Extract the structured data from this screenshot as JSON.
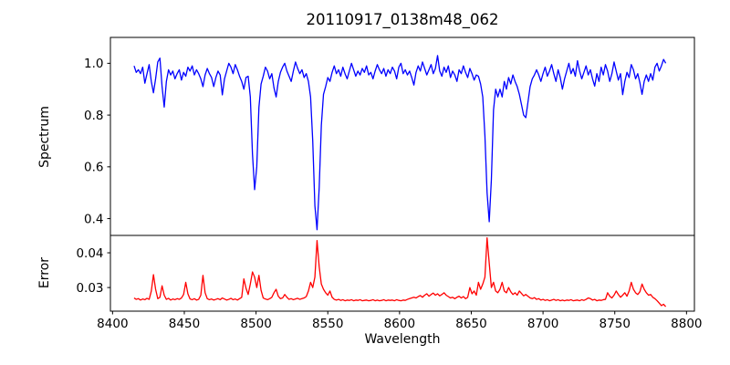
{
  "figure": {
    "background": "#ffffff",
    "frame_color": "#000000"
  },
  "chart_data": [
    {
      "type": "line",
      "panel": "spectrum",
      "title": "20110917_0138m48_062",
      "ylabel": "Spectrum",
      "line_color": "#0000ff",
      "x_start": 8415,
      "x_step": 1.5,
      "xlim": [
        8398.5,
        8805.5
      ],
      "ylim": [
        0.335,
        1.1
      ],
      "yticks": [
        0.4,
        0.6,
        0.8,
        1.0
      ],
      "ytick_labels": [
        "0.4",
        "0.6",
        "0.8",
        "1.0"
      ],
      "absorption_lines_wavelengths": [
        8498,
        8542,
        8662,
        8688
      ],
      "values": [
        0.99,
        0.965,
        0.975,
        0.96,
        0.985,
        0.923,
        0.96,
        0.995,
        0.93,
        0.886,
        0.94,
        1.005,
        1.02,
        0.91,
        0.831,
        0.93,
        0.975,
        0.955,
        0.97,
        0.94,
        0.96,
        0.975,
        0.935,
        0.965,
        0.95,
        0.985,
        0.97,
        0.99,
        0.955,
        0.975,
        0.96,
        0.94,
        0.91,
        0.955,
        0.98,
        0.96,
        0.945,
        0.91,
        0.945,
        0.97,
        0.955,
        0.878,
        0.94,
        0.97,
        1.0,
        0.985,
        0.96,
        0.995,
        0.975,
        0.95,
        0.93,
        0.9,
        0.945,
        0.95,
        0.87,
        0.65,
        0.512,
        0.6,
        0.83,
        0.92,
        0.95,
        0.985,
        0.97,
        0.94,
        0.96,
        0.905,
        0.87,
        0.93,
        0.965,
        0.985,
        1.0,
        0.97,
        0.95,
        0.93,
        0.97,
        1.005,
        0.98,
        0.96,
        0.975,
        0.945,
        0.96,
        0.93,
        0.87,
        0.7,
        0.45,
        0.357,
        0.52,
        0.76,
        0.88,
        0.91,
        0.945,
        0.93,
        0.965,
        0.99,
        0.96,
        0.975,
        0.95,
        0.985,
        0.96,
        0.94,
        0.97,
        1.0,
        0.975,
        0.95,
        0.97,
        0.955,
        0.98,
        0.965,
        0.99,
        0.955,
        0.965,
        0.94,
        0.97,
        0.995,
        0.975,
        0.96,
        0.98,
        0.95,
        0.975,
        0.96,
        0.985,
        0.97,
        0.94,
        0.985,
        1.0,
        0.96,
        0.975,
        0.955,
        0.97,
        0.945,
        0.916,
        0.965,
        0.99,
        0.97,
        1.005,
        0.98,
        0.955,
        0.975,
        0.995,
        0.96,
        0.98,
        1.03,
        0.97,
        0.95,
        0.985,
        0.965,
        0.99,
        0.945,
        0.97,
        0.955,
        0.93,
        0.975,
        0.96,
        0.99,
        0.965,
        0.945,
        0.98,
        0.96,
        0.935,
        0.955,
        0.95,
        0.92,
        0.87,
        0.72,
        0.5,
        0.388,
        0.55,
        0.82,
        0.9,
        0.87,
        0.9,
        0.87,
        0.93,
        0.9,
        0.945,
        0.92,
        0.955,
        0.93,
        0.91,
        0.88,
        0.84,
        0.8,
        0.79,
        0.85,
        0.91,
        0.94,
        0.955,
        0.975,
        0.955,
        0.93,
        0.96,
        0.985,
        0.95,
        0.97,
        0.995,
        0.96,
        0.93,
        0.975,
        0.945,
        0.9,
        0.94,
        0.97,
        1.0,
        0.96,
        0.98,
        0.95,
        1.01,
        0.97,
        0.94,
        0.965,
        0.99,
        0.955,
        0.975,
        0.94,
        0.912,
        0.96,
        0.93,
        0.985,
        0.955,
        0.995,
        0.97,
        0.93,
        0.96,
        1.005,
        0.97,
        0.935,
        0.96,
        0.879,
        0.93,
        0.965,
        0.945,
        0.995,
        0.975,
        0.94,
        0.96,
        0.925,
        0.88,
        0.93,
        0.955,
        0.93,
        0.96,
        0.935,
        0.985,
        1.0,
        0.97,
        0.99,
        1.015,
        1.0
      ]
    },
    {
      "type": "line",
      "panel": "error",
      "ylabel": "Error",
      "xlabel": "Wavelength",
      "line_color": "#ff0000",
      "x_start": 8415,
      "x_step": 1.5,
      "xlim": [
        8398.5,
        8805.5
      ],
      "ylim": [
        0.0232,
        0.045
      ],
      "yticks": [
        0.03,
        0.04
      ],
      "ytick_labels": [
        "0.03",
        "0.04"
      ],
      "xticks": [
        8400,
        8450,
        8500,
        8550,
        8600,
        8650,
        8700,
        8750,
        8800
      ],
      "xtick_labels": [
        "8400",
        "8450",
        "8500",
        "8550",
        "8600",
        "8650",
        "8700",
        "8750",
        "8800"
      ],
      "values": [
        0.027,
        0.0266,
        0.0268,
        0.0264,
        0.0267,
        0.0265,
        0.0269,
        0.0266,
        0.029,
        0.0337,
        0.0295,
        0.0268,
        0.0272,
        0.0305,
        0.0278,
        0.0266,
        0.0269,
        0.0264,
        0.0267,
        0.0265,
        0.0268,
        0.0266,
        0.027,
        0.028,
        0.0315,
        0.0282,
        0.0267,
        0.0265,
        0.0268,
        0.0264,
        0.0266,
        0.0278,
        0.0335,
        0.0285,
        0.0268,
        0.0265,
        0.0267,
        0.0264,
        0.0266,
        0.0268,
        0.0265,
        0.027,
        0.0267,
        0.0264,
        0.0266,
        0.0269,
        0.0265,
        0.0267,
        0.0264,
        0.0268,
        0.0272,
        0.0325,
        0.0298,
        0.028,
        0.031,
        0.0345,
        0.033,
        0.03,
        0.0335,
        0.0292,
        0.027,
        0.0267,
        0.0265,
        0.0268,
        0.0272,
        0.0285,
        0.0295,
        0.0275,
        0.0268,
        0.027,
        0.028,
        0.0272,
        0.0266,
        0.0268,
        0.0265,
        0.0267,
        0.0269,
        0.0266,
        0.0268,
        0.027,
        0.0274,
        0.029,
        0.0315,
        0.03,
        0.033,
        0.0435,
        0.036,
        0.031,
        0.0295,
        0.0285,
        0.0278,
        0.029,
        0.0272,
        0.0266,
        0.0264,
        0.0266,
        0.0263,
        0.0265,
        0.0262,
        0.0264,
        0.0263,
        0.0265,
        0.0262,
        0.0264,
        0.0263,
        0.0265,
        0.0262,
        0.0263,
        0.0264,
        0.0262,
        0.0263,
        0.0265,
        0.0262,
        0.0264,
        0.0262,
        0.0263,
        0.0265,
        0.0262,
        0.0264,
        0.0263,
        0.0264,
        0.0262,
        0.0265,
        0.0263,
        0.0262,
        0.0264,
        0.0263,
        0.0266,
        0.0268,
        0.027,
        0.0272,
        0.027,
        0.0274,
        0.0277,
        0.0272,
        0.0278,
        0.0282,
        0.0275,
        0.028,
        0.0284,
        0.0278,
        0.0282,
        0.0276,
        0.028,
        0.0285,
        0.0278,
        0.0274,
        0.027,
        0.0272,
        0.0268,
        0.0272,
        0.0275,
        0.027,
        0.0274,
        0.0268,
        0.0272,
        0.03,
        0.0282,
        0.029,
        0.0278,
        0.0315,
        0.0295,
        0.031,
        0.033,
        0.0443,
        0.037,
        0.03,
        0.0315,
        0.029,
        0.0285,
        0.0295,
        0.0315,
        0.029,
        0.0285,
        0.03,
        0.0288,
        0.028,
        0.0285,
        0.0278,
        0.029,
        0.0283,
        0.0276,
        0.028,
        0.0275,
        0.027,
        0.0268,
        0.0271,
        0.0266,
        0.0268,
        0.0264,
        0.0266,
        0.0263,
        0.0265,
        0.0262,
        0.0264,
        0.0266,
        0.0263,
        0.0265,
        0.0262,
        0.0264,
        0.0262,
        0.0264,
        0.0263,
        0.0265,
        0.0262,
        0.0263,
        0.0264,
        0.0262,
        0.0265,
        0.0263,
        0.0266,
        0.027,
        0.0268,
        0.0264,
        0.0266,
        0.0262,
        0.0264,
        0.0263,
        0.0265,
        0.0266,
        0.0285,
        0.0275,
        0.027,
        0.0278,
        0.029,
        0.028,
        0.0272,
        0.0278,
        0.0285,
        0.0275,
        0.029,
        0.0315,
        0.0295,
        0.0285,
        0.028,
        0.0288,
        0.031,
        0.0295,
        0.0285,
        0.0278,
        0.028,
        0.0272,
        0.0268,
        0.0262,
        0.0255,
        0.0248,
        0.0252,
        0.0245
      ]
    }
  ]
}
